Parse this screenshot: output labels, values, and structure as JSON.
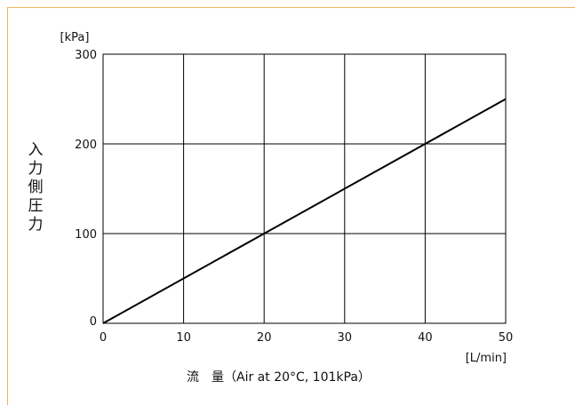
{
  "chart_data": {
    "type": "line",
    "title": "",
    "x": [
      0,
      50
    ],
    "series": [
      {
        "values": [
          0,
          250
        ]
      }
    ],
    "xlabel": "流　量（Air at 20°C, 101kPa）",
    "xunit": "[L/min]",
    "ylabel": "入力側圧力",
    "yunit": "[kPa]",
    "xlim": [
      0,
      50
    ],
    "ylim": [
      0,
      300
    ],
    "xticks": [
      "0",
      "10",
      "20",
      "30",
      "40",
      "50"
    ],
    "yticks": [
      "0",
      "100",
      "200",
      "300"
    ],
    "grid": true,
    "colors": {
      "line": "#000000",
      "grid": "#000000",
      "frame_accent": "#f2b15e"
    }
  }
}
